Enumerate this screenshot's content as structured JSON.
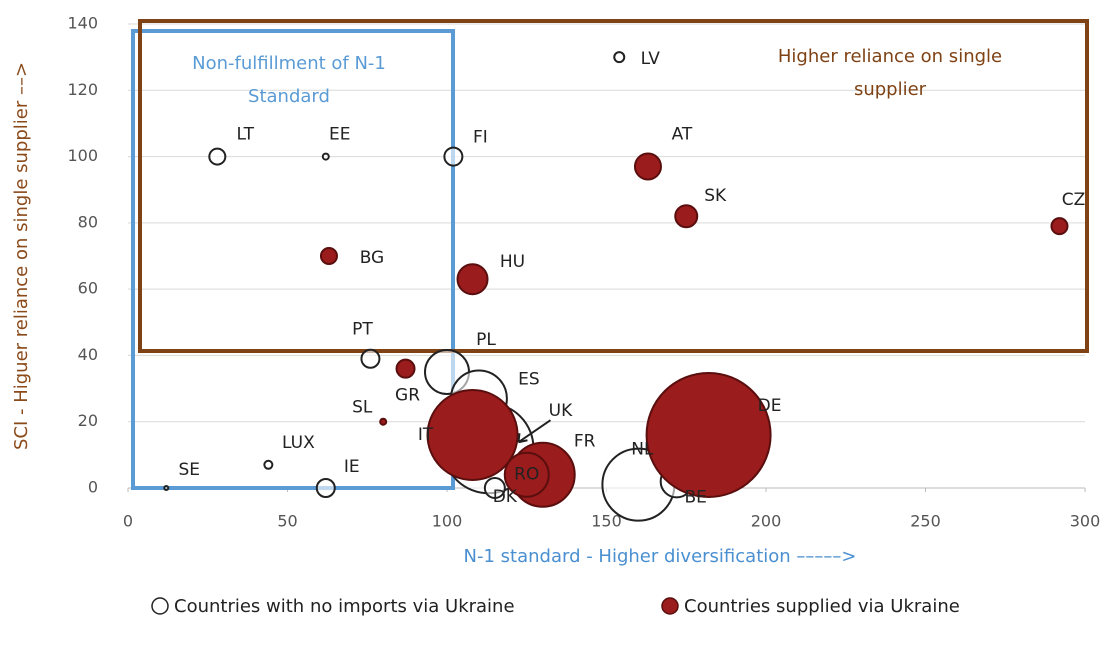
{
  "chart_data": {
    "type": "bubble",
    "x_label": "N-1 standard - Higher diversification  –––––>",
    "y_label": "SCI - Higuer reliance on single supplier ––>",
    "annotations": [
      {
        "lines": [
          "Non-fulfillment of N-1",
          "Standard"
        ],
        "color": "#5b9bd5"
      },
      {
        "lines": [
          "Higher reliance on single",
          "supplier"
        ],
        "color": "#7f4214"
      }
    ],
    "xlim": [
      0,
      300
    ],
    "xticks": [
      0,
      50,
      100,
      150,
      200,
      250,
      300
    ],
    "ylim": [
      0,
      140
    ],
    "yticks": [
      0,
      20,
      40,
      60,
      80,
      100,
      120,
      140
    ],
    "grid": true,
    "legend": "bottom",
    "series": [
      {
        "name": "Countries with no imports via Ukraine",
        "color": "#ffffff",
        "labels": [
          "LT",
          "EE",
          "FI",
          "LV",
          "PT",
          "PL",
          "ES",
          "UK",
          "NL",
          "BE",
          "DK",
          "LUX",
          "IE",
          "SE"
        ],
        "x": [
          28,
          62,
          102,
          154,
          76,
          100,
          110,
          113,
          160,
          172,
          115,
          44,
          62,
          12
        ],
        "values": [
          100,
          100,
          100,
          130,
          39,
          35,
          27,
          12,
          1,
          2,
          0,
          7,
          0,
          0
        ],
        "size": [
          8,
          3,
          9,
          5,
          9,
          22,
          28,
          45,
          36,
          16,
          10,
          4,
          9,
          2
        ]
      },
      {
        "name": "Countries supplied via Ukraine",
        "color": "#9b1c1c",
        "labels": [
          "AT",
          "SK",
          "CZ",
          "BG",
          "HU",
          "GR",
          "SL",
          "IT",
          "DE",
          "FR",
          "RO"
        ],
        "x": [
          163,
          175,
          292,
          63,
          108,
          87,
          80,
          108,
          182,
          130,
          125
        ],
        "values": [
          97,
          82,
          79,
          70,
          63,
          36,
          20,
          16,
          16,
          4,
          4
        ],
        "size": [
          13,
          11,
          8,
          8,
          15,
          9,
          3,
          45,
          62,
          32,
          22
        ]
      }
    ]
  }
}
